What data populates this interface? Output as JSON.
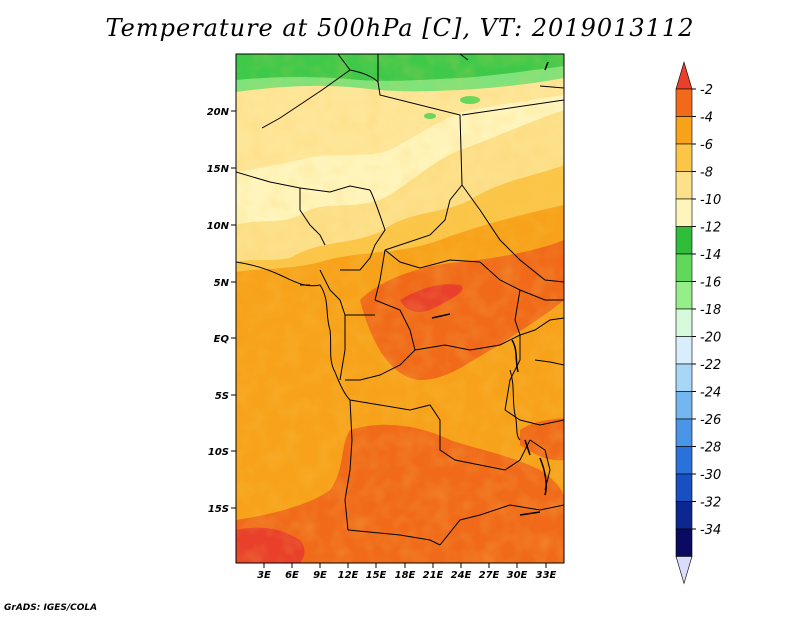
{
  "title": "Temperature at 500hPa [C], VT: 2019013112",
  "credit": "GrADS: IGES/COLA",
  "map": {
    "lat_ticks": [
      "20N",
      "15N",
      "10N",
      "5N",
      "EQ",
      "5S",
      "10S",
      "15S"
    ],
    "lon_ticks": [
      "3E",
      "6E",
      "9E",
      "12E",
      "15E",
      "18E",
      "21E",
      "24E",
      "27E",
      "30E",
      "33E"
    ],
    "field": "temperature",
    "level": "500hPa",
    "units": "C"
  },
  "colorbar": {
    "labels": [
      "-2",
      "-4",
      "-6",
      "-8",
      "-10",
      "-12",
      "-14",
      "-16",
      "-18",
      "-20",
      "-22",
      "-24",
      "-26",
      "-28",
      "-30",
      "-32",
      "-34"
    ],
    "colors": [
      "#e8402a",
      "#f06a1a",
      "#f7a21a",
      "#fbc648",
      "#fde08a",
      "#fff5bc",
      "#2fbd3a",
      "#5fd85b",
      "#95ee8a",
      "#d6fada",
      "#d8eefc",
      "#a8d6f7",
      "#73b6f0",
      "#4a95e8",
      "#2a72da",
      "#1850c2",
      "#0c2790",
      "#0a0a60",
      "#d9dcfa"
    ]
  }
}
